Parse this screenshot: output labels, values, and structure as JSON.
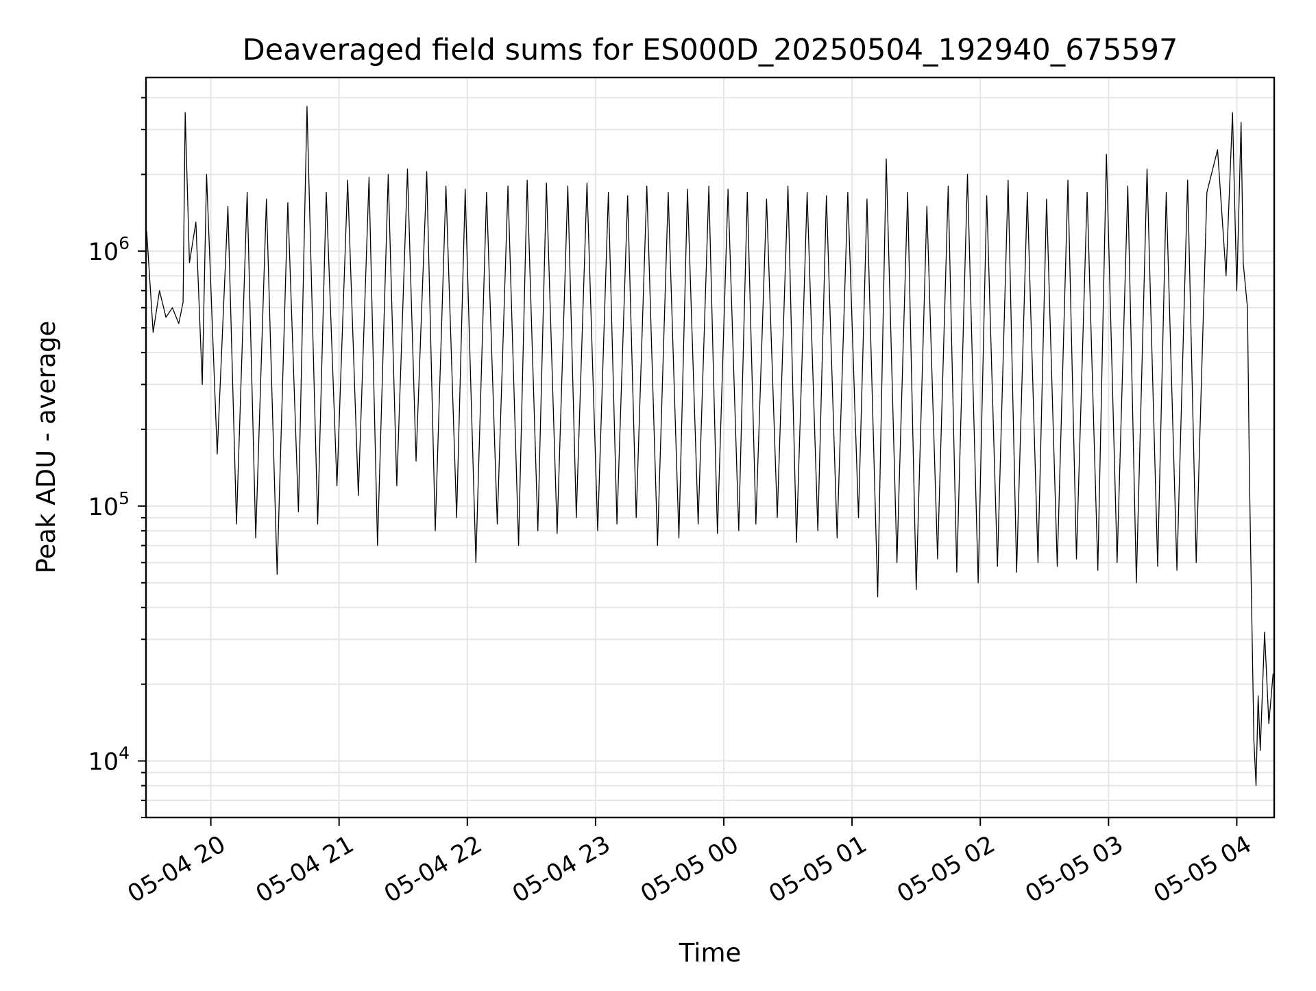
{
  "chart_data": {
    "type": "line",
    "title": "Deaveraged field sums for ES000D_20250504_192940_675597",
    "xlabel": "Time",
    "ylabel": "Peak ADU - average",
    "x_scale": "time",
    "y_scale": "log",
    "xlim": [
      "2025-05-04 19:29:40",
      "2025-05-05 04:17:30"
    ],
    "ylim": [
      6000,
      4800000
    ],
    "grid": "on",
    "legend": "none",
    "line_color": "#000000",
    "x_tick_labels": [
      "05-04 20",
      "05-04 21",
      "05-04 22",
      "05-04 23",
      "05-05 00",
      "05-05 01",
      "05-05 02",
      "05-05 03",
      "05-05 04"
    ],
    "x_ticks": [
      "2025-05-04 20:00",
      "2025-05-04 21:00",
      "2025-05-04 22:00",
      "2025-05-04 23:00",
      "2025-05-05 00:00",
      "2025-05-05 01:00",
      "2025-05-05 02:00",
      "2025-05-05 03:00",
      "2025-05-05 04:00"
    ],
    "y_ticks": [
      10000,
      100000,
      1000000
    ],
    "y_tick_labels": [
      {
        "base": "10",
        "exponent": "4"
      },
      {
        "base": "10",
        "exponent": "5"
      },
      {
        "base": "10",
        "exponent": "6"
      }
    ],
    "series": [
      {
        "x": [
          "2025-05-04 19:30",
          "2025-05-04 19:33",
          "2025-05-04 19:36",
          "2025-05-04 19:39",
          "2025-05-04 19:42",
          "2025-05-04 19:45",
          "2025-05-04 19:47",
          "2025-05-04 19:48",
          "2025-05-04 19:50",
          "2025-05-04 19:53",
          "2025-05-04 19:56",
          "2025-05-04 19:58",
          "2025-05-04 20:03",
          "2025-05-04 20:08",
          "2025-05-04 20:12",
          "2025-05-04 20:17",
          "2025-05-04 20:21",
          "2025-05-04 20:26",
          "2025-05-04 20:31",
          "2025-05-04 20:36",
          "2025-05-04 20:41",
          "2025-05-04 20:45",
          "2025-05-04 20:50",
          "2025-05-04 20:54",
          "2025-05-04 20:59",
          "2025-05-04 21:04",
          "2025-05-04 21:09",
          "2025-05-04 21:14",
          "2025-05-04 21:18",
          "2025-05-04 21:23",
          "2025-05-04 21:27",
          "2025-05-04 21:32",
          "2025-05-04 21:36",
          "2025-05-04 21:41",
          "2025-05-04 21:45",
          "2025-05-04 21:50",
          "2025-05-04 21:55",
          "2025-05-04 21:59",
          "2025-05-04 22:04",
          "2025-05-04 22:09",
          "2025-05-04 22:14",
          "2025-05-04 22:19",
          "2025-05-04 22:24",
          "2025-05-04 22:28",
          "2025-05-04 22:33",
          "2025-05-04 22:37",
          "2025-05-04 22:42",
          "2025-05-04 22:47",
          "2025-05-04 22:51",
          "2025-05-04 22:56",
          "2025-05-04 23:01",
          "2025-05-04 23:06",
          "2025-05-04 23:10",
          "2025-05-04 23:15",
          "2025-05-04 23:19",
          "2025-05-04 23:24",
          "2025-05-04 23:29",
          "2025-05-04 23:34",
          "2025-05-04 23:39",
          "2025-05-04 23:43",
          "2025-05-04 23:48",
          "2025-05-04 23:53",
          "2025-05-04 23:57",
          "2025-05-05 00:02",
          "2025-05-05 00:07",
          "2025-05-05 00:11",
          "2025-05-05 00:15",
          "2025-05-05 00:20",
          "2025-05-05 00:25",
          "2025-05-05 00:30",
          "2025-05-05 00:34",
          "2025-05-05 00:39",
          "2025-05-05 00:44",
          "2025-05-05 00:48",
          "2025-05-05 00:53",
          "2025-05-05 00:58",
          "2025-05-05 01:03",
          "2025-05-05 01:07",
          "2025-05-05 01:12",
          "2025-05-05 01:16",
          "2025-05-05 01:21",
          "2025-05-05 01:26",
          "2025-05-05 01:30",
          "2025-05-05 01:35",
          "2025-05-05 01:40",
          "2025-05-05 01:45",
          "2025-05-05 01:49",
          "2025-05-05 01:54",
          "2025-05-05 01:59",
          "2025-05-05 02:03",
          "2025-05-05 02:08",
          "2025-05-05 02:13",
          "2025-05-05 02:17",
          "2025-05-05 02:22",
          "2025-05-05 02:27",
          "2025-05-05 02:31",
          "2025-05-05 02:36",
          "2025-05-05 02:41",
          "2025-05-05 02:45",
          "2025-05-05 02:50",
          "2025-05-05 02:55",
          "2025-05-05 02:59",
          "2025-05-05 03:04",
          "2025-05-05 03:09",
          "2025-05-05 03:13",
          "2025-05-05 03:18",
          "2025-05-05 03:23",
          "2025-05-05 03:27",
          "2025-05-05 03:32",
          "2025-05-05 03:37",
          "2025-05-05 03:41",
          "2025-05-05 03:46",
          "2025-05-05 03:51",
          "2025-05-05 03:55",
          "2025-05-05 03:58",
          "2025-05-05 04:00",
          "2025-05-05 04:02",
          "2025-05-05 04:03",
          "2025-05-05 04:05",
          "2025-05-05 04:06",
          "2025-05-05 04:08",
          "2025-05-05 04:09",
          "2025-05-05 04:10",
          "2025-05-05 04:11",
          "2025-05-05 04:13",
          "2025-05-05 04:15",
          "2025-05-05 04:17"
        ],
        "values": [
          1200000,
          480000,
          700000,
          550000,
          600000,
          520000,
          630000,
          3500000,
          900000,
          1300000,
          300000,
          2000000,
          160000,
          1500000,
          85000,
          1700000,
          75000,
          1600000,
          54000,
          1550000,
          95000,
          3700000,
          85000,
          1700000,
          120000,
          1900000,
          110000,
          1950000,
          70000,
          2000000,
          120000,
          2100000,
          150000,
          2050000,
          80000,
          1800000,
          90000,
          1750000,
          60000,
          1700000,
          85000,
          1800000,
          70000,
          1900000,
          80000,
          1850000,
          78000,
          1800000,
          90000,
          1850000,
          80000,
          1700000,
          85000,
          1650000,
          90000,
          1800000,
          70000,
          1700000,
          75000,
          1750000,
          85000,
          1800000,
          78000,
          1750000,
          80000,
          1700000,
          85000,
          1600000,
          90000,
          1800000,
          72000,
          1700000,
          80000,
          1650000,
          75000,
          1700000,
          90000,
          1600000,
          44000,
          2300000,
          60000,
          1700000,
          47000,
          1500000,
          62000,
          1800000,
          55000,
          2000000,
          50000,
          1650000,
          58000,
          1900000,
          55000,
          1700000,
          60000,
          1600000,
          58000,
          1900000,
          62000,
          1700000,
          56000,
          2400000,
          60000,
          1800000,
          50000,
          2100000,
          58000,
          1700000,
          56000,
          1900000,
          60000,
          1700000,
          2500000,
          800000,
          3500000,
          700000,
          3200000,
          900000,
          600000,
          120000,
          12000,
          8000,
          18000,
          11000,
          32000,
          14000,
          22000
        ]
      }
    ]
  }
}
